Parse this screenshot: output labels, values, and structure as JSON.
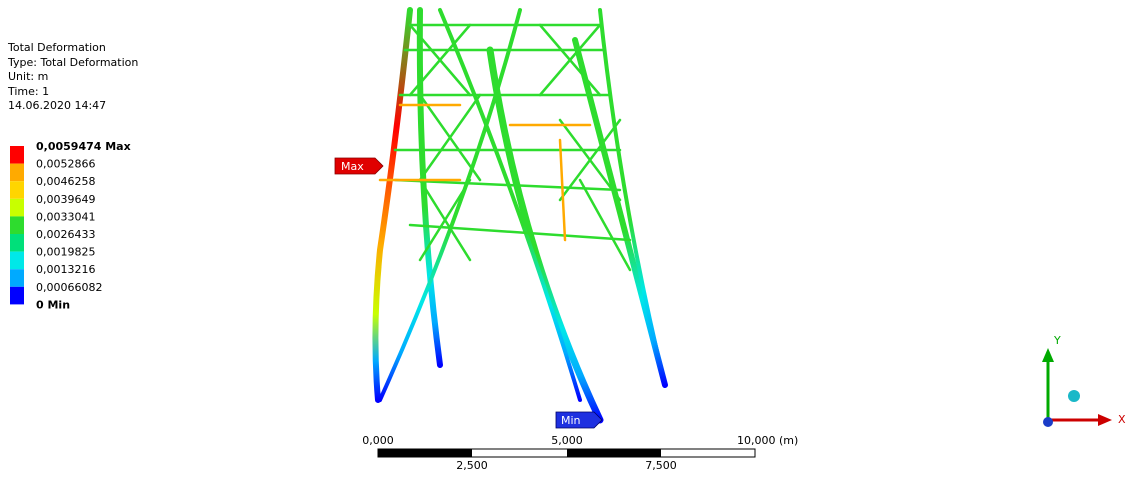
{
  "info": {
    "title": "Total Deformation",
    "type": "Type: Total Deformation",
    "unit": "Unit: m",
    "time": "Time: 1",
    "date": "14.06.2020 14:47"
  },
  "legend": {
    "labels": [
      "0,0059474 Max",
      "0,0052866",
      "0,0046258",
      "0,0039649",
      "0,0033041",
      "0,0026433",
      "0,0019825",
      "0,0013216",
      "0,00066082",
      "0 Min"
    ],
    "colors": [
      "#ff0000",
      "#ffaa00",
      "#ffd500",
      "#c8ff00",
      "#2edc2e",
      "#00e07a",
      "#00e8e8",
      "#00aaff",
      "#0000ff"
    ]
  },
  "probes": {
    "max": "Max",
    "min": "Min"
  },
  "scale_bar": {
    "labels": [
      "0,000",
      "2,500",
      "5,000",
      "7,500",
      "10,000 (m)"
    ]
  },
  "triad": {
    "y": "Y",
    "x": "X"
  }
}
